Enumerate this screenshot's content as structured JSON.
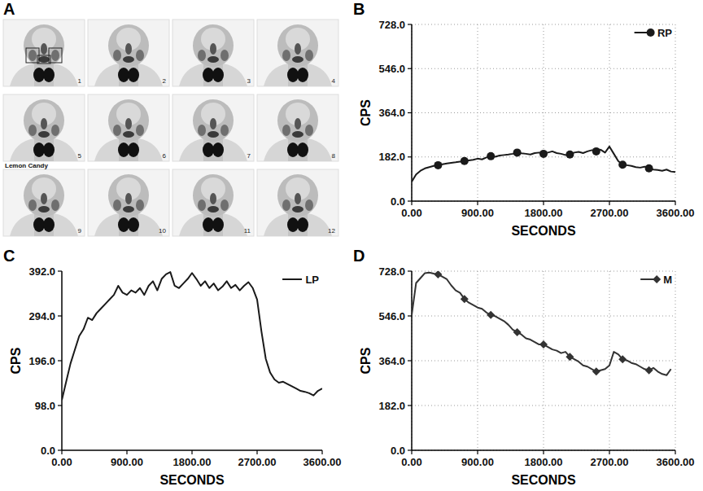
{
  "image_panel": {
    "title": "A",
    "annotation": "Lemon Candy",
    "frames": [
      1,
      2,
      3,
      4,
      5,
      6,
      7,
      8,
      9,
      10,
      11,
      12
    ]
  },
  "chart_data": [
    {
      "type": "line",
      "title": "B",
      "x_label": "SECONDS",
      "y_label": "CPS",
      "x": [
        0,
        60,
        120,
        180,
        240,
        300,
        360,
        420,
        480,
        540,
        600,
        660,
        720,
        780,
        840,
        900,
        960,
        1020,
        1080,
        1140,
        1200,
        1260,
        1320,
        1380,
        1440,
        1500,
        1560,
        1620,
        1680,
        1740,
        1800,
        1860,
        1920,
        1980,
        2040,
        2100,
        2160,
        2220,
        2280,
        2340,
        2400,
        2460,
        2520,
        2580,
        2640,
        2700,
        2760,
        2820,
        2880,
        2940,
        3000,
        3060,
        3120,
        3180,
        3240,
        3300,
        3360,
        3420,
        3480,
        3540,
        3600
      ],
      "xlim": [
        0,
        3600
      ],
      "xticks": [
        {
          "value": 0,
          "label": "0.00"
        },
        {
          "value": 900,
          "label": "900.00"
        },
        {
          "value": 1800,
          "label": "1800.00"
        },
        {
          "value": 2700,
          "label": "2700.00"
        },
        {
          "value": 3600,
          "label": "3600.00"
        }
      ],
      "ylim": [
        0,
        728
      ],
      "yticks": [
        {
          "value": 0,
          "label": "0.0"
        },
        {
          "value": 182,
          "label": "182.0"
        },
        {
          "value": 364,
          "label": "364.0"
        },
        {
          "value": 546,
          "label": "546.0"
        },
        {
          "value": 728,
          "label": "728.0"
        }
      ],
      "grid": true,
      "legend": "top-right",
      "series": [
        {
          "name": "RP",
          "color": "#1a1a1a",
          "marker": "circle",
          "values": [
            80,
            110,
            125,
            135,
            140,
            145,
            148,
            152,
            155,
            158,
            160,
            163,
            165,
            168,
            170,
            175,
            172,
            180,
            185,
            183,
            188,
            190,
            192,
            195,
            200,
            197,
            195,
            192,
            198,
            200,
            195,
            200,
            205,
            198,
            195,
            190,
            192,
            200,
            203,
            198,
            205,
            210,
            205,
            212,
            200,
            225,
            195,
            165,
            150,
            148,
            145,
            140,
            138,
            142,
            135,
            130,
            128,
            125,
            130,
            122,
            120
          ]
        }
      ]
    },
    {
      "type": "line",
      "title": "C",
      "x_label": "SECONDS",
      "y_label": "CPS",
      "x": [
        0,
        60,
        120,
        180,
        240,
        300,
        360,
        420,
        480,
        540,
        600,
        660,
        720,
        780,
        840,
        900,
        960,
        1020,
        1080,
        1140,
        1200,
        1260,
        1320,
        1380,
        1440,
        1500,
        1560,
        1620,
        1680,
        1740,
        1800,
        1860,
        1920,
        1980,
        2040,
        2100,
        2160,
        2220,
        2280,
        2340,
        2400,
        2460,
        2520,
        2580,
        2640,
        2700,
        2760,
        2820,
        2880,
        2940,
        3000,
        3060,
        3120,
        3180,
        3240,
        3300,
        3360,
        3420,
        3480,
        3540,
        3600
      ],
      "xlim": [
        0,
        3600
      ],
      "xticks": [
        {
          "value": 0,
          "label": "0.00"
        },
        {
          "value": 900,
          "label": "900.00"
        },
        {
          "value": 1800,
          "label": "1800.00"
        },
        {
          "value": 2700,
          "label": "2700.00"
        },
        {
          "value": 3600,
          "label": "3600.00"
        }
      ],
      "ylim": [
        0,
        392
      ],
      "yticks": [
        {
          "value": 0,
          "label": "0.0"
        },
        {
          "value": 98,
          "label": "98.0"
        },
        {
          "value": 196,
          "label": "196.0"
        },
        {
          "value": 294,
          "label": "294.0"
        },
        {
          "value": 392,
          "label": "392.0"
        }
      ],
      "grid": false,
      "legend": "top-right",
      "series": [
        {
          "name": "LP",
          "color": "#1a1a1a",
          "marker": "none",
          "values": [
            110,
            150,
            190,
            220,
            250,
            265,
            290,
            285,
            300,
            310,
            320,
            330,
            340,
            360,
            345,
            340,
            350,
            345,
            355,
            340,
            360,
            370,
            350,
            375,
            385,
            390,
            360,
            355,
            365,
            375,
            388,
            375,
            360,
            370,
            355,
            365,
            350,
            358,
            370,
            355,
            362,
            350,
            360,
            368,
            355,
            330,
            260,
            200,
            170,
            155,
            148,
            150,
            145,
            140,
            135,
            130,
            128,
            125,
            120,
            130,
            135
          ]
        }
      ]
    },
    {
      "type": "line",
      "title": "D",
      "x_label": "SECONDS",
      "y_label": "CPS",
      "x": [
        0,
        60,
        120,
        180,
        240,
        300,
        360,
        420,
        480,
        540,
        600,
        660,
        720,
        780,
        840,
        900,
        960,
        1020,
        1080,
        1140,
        1200,
        1260,
        1320,
        1380,
        1440,
        1500,
        1560,
        1620,
        1680,
        1740,
        1800,
        1860,
        1920,
        1980,
        2040,
        2100,
        2160,
        2220,
        2280,
        2340,
        2400,
        2460,
        2520,
        2580,
        2640,
        2700,
        2760,
        2820,
        2880,
        2940,
        3000,
        3060,
        3120,
        3180,
        3240,
        3300,
        3360,
        3420,
        3480,
        3540
      ],
      "xlim": [
        0,
        3600
      ],
      "xticks": [
        {
          "value": 0,
          "label": "0.00"
        },
        {
          "value": 900,
          "label": "900.00"
        },
        {
          "value": 1800,
          "label": "1800.00"
        },
        {
          "value": 2700,
          "label": "2700.00"
        },
        {
          "value": 3600,
          "label": "3600.00"
        }
      ],
      "ylim": [
        0,
        728
      ],
      "yticks": [
        {
          "value": 0,
          "label": "0.0"
        },
        {
          "value": 182,
          "label": "182.0"
        },
        {
          "value": 364,
          "label": "364.0"
        },
        {
          "value": 546,
          "label": "546.0"
        },
        {
          "value": 728,
          "label": "728.0"
        }
      ],
      "grid": true,
      "legend": "top-right",
      "series": [
        {
          "name": "M",
          "color": "#333333",
          "marker": "diamond",
          "values": [
            550,
            680,
            700,
            720,
            722,
            718,
            715,
            705,
            695,
            670,
            650,
            640,
            615,
            600,
            590,
            580,
            575,
            560,
            550,
            545,
            535,
            525,
            510,
            490,
            480,
            470,
            455,
            450,
            440,
            430,
            430,
            420,
            410,
            405,
            395,
            400,
            380,
            370,
            360,
            345,
            340,
            330,
            320,
            325,
            330,
            345,
            400,
            390,
            370,
            365,
            355,
            350,
            340,
            330,
            325,
            335,
            320,
            310,
            305,
            330
          ]
        }
      ]
    }
  ]
}
